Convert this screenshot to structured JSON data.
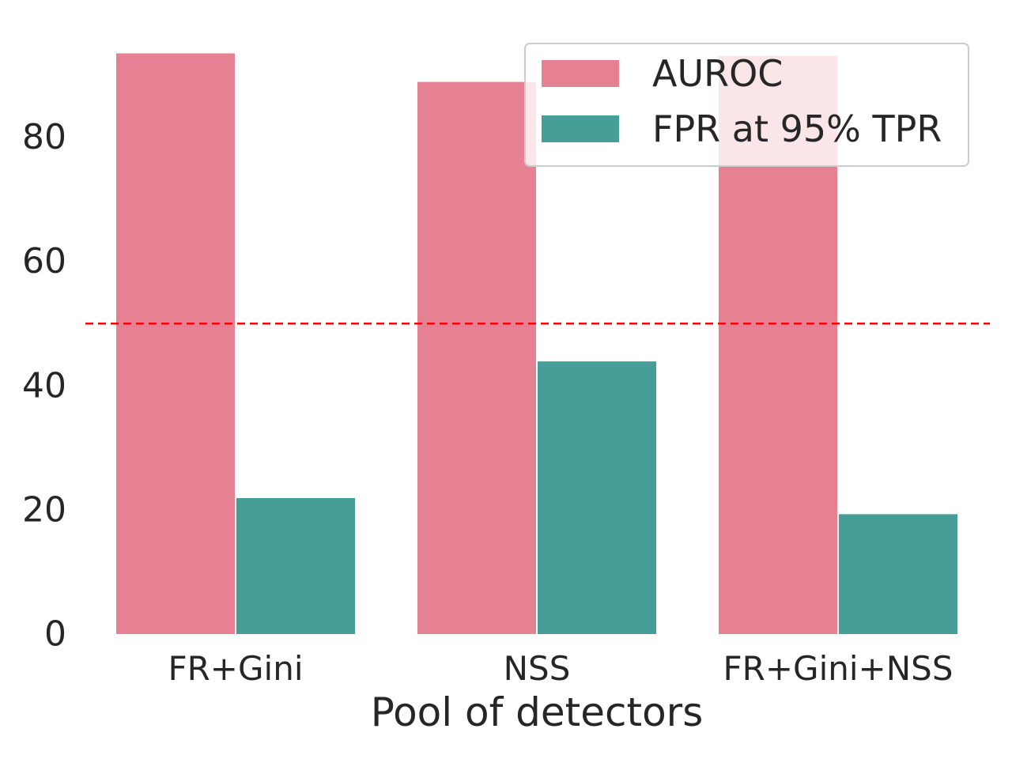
{
  "chart_data": {
    "type": "bar",
    "categories": [
      "FR+Gini",
      "NSS",
      "FR+Gini+NSS"
    ],
    "series": [
      {
        "name": "AUROC",
        "values": [
          93.5,
          88.9,
          93.1
        ],
        "color": "#e68093"
      },
      {
        "name": "FPR at 95% TPR",
        "values": [
          21.9,
          43.9,
          19.3
        ],
        "color": "#479e98"
      }
    ],
    "xlabel": "Pool of detectors",
    "ylabel": "",
    "ylim": [
      0,
      97
    ],
    "yticks": [
      0,
      20,
      40,
      60,
      80
    ],
    "reference_line": {
      "y": 50,
      "color": "#ff0000",
      "style": "dashed"
    },
    "legend": {
      "placement": "top-right"
    },
    "grid": false
  }
}
